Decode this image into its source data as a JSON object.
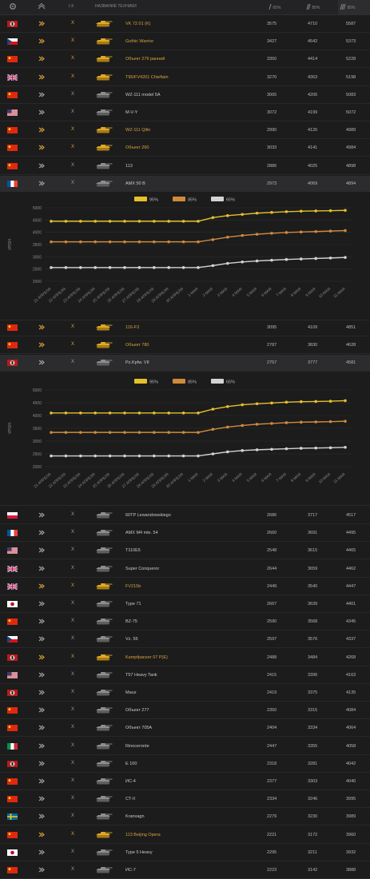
{
  "header": {
    "col_tier": "I-X",
    "col_name": "НАЗВАНИЕ ТЕХНИКИ",
    "col_65": "65%",
    "col_85": "85%",
    "col_95": "95%"
  },
  "colors": {
    "gold": "#e6c02a",
    "orange": "#cf8a3c",
    "white": "#d3d3d3",
    "row_name_gold": "#dba13b"
  },
  "rows": [
    {
      "flag": "germany",
      "rank": "gold",
      "x": "gold",
      "tank": "gold",
      "name": "VK 72.01 (K)",
      "gold": true,
      "v1": "3575",
      "v2": "4710",
      "v3": "5587"
    },
    {
      "flag": "czech",
      "rank": "gold",
      "x": "gold",
      "tank": "gold",
      "name": "Gothic Warrior",
      "gold": true,
      "v1": "3427",
      "v2": "4542",
      "v3": "5373"
    },
    {
      "flag": "china",
      "rank": "gold",
      "x": "gold",
      "tank": "gold",
      "name": "Объект 279 ранний",
      "gold": true,
      "v1": "3350",
      "v2": "4414",
      "v3": "5228"
    },
    {
      "flag": "uk",
      "rank": "gold",
      "x": "gold",
      "tank": "gold",
      "name": "T95/FV4201 Chieftain",
      "gold": true,
      "v1": "3270",
      "v2": "4363",
      "v3": "5198"
    },
    {
      "flag": "china",
      "rank": "silver",
      "x": "grey",
      "tank": "grey",
      "name": "WZ-111 model 5A",
      "gold": false,
      "v1": "3065",
      "v2": "4206",
      "v3": "5083"
    },
    {
      "flag": "usa",
      "rank": "silver",
      "x": "grey",
      "tank": "grey",
      "name": "M-V-Y",
      "gold": false,
      "v1": "3072",
      "v2": "4199",
      "v3": "5072"
    },
    {
      "flag": "china",
      "rank": "gold",
      "x": "gold",
      "tank": "gold",
      "name": "WZ-111 Qilin",
      "gold": true,
      "v1": "2990",
      "v2": "4126",
      "v3": "4989"
    },
    {
      "flag": "china",
      "rank": "gold",
      "x": "gold",
      "tank": "gold",
      "name": "Объект 260",
      "gold": true,
      "v1": "3033",
      "v2": "4141",
      "v3": "4984"
    },
    {
      "flag": "china",
      "rank": "silver",
      "x": "grey",
      "tank": "grey",
      "name": "113",
      "gold": false,
      "v1": "2886",
      "v2": "4025",
      "v3": "4898"
    },
    {
      "flag": "france",
      "rank": "silver",
      "x": "grey",
      "tank": "grey",
      "name": "AMX 50 B",
      "gold": false,
      "v1": "2973",
      "v2": "4069",
      "v3": "4894",
      "selected": true
    }
  ],
  "rows_mid": [
    {
      "flag": "china",
      "rank": "gold",
      "x": "gold",
      "tank": "gold",
      "name": "116-F3",
      "gold": true,
      "v1": "3095",
      "v2": "4109",
      "v3": "4851"
    },
    {
      "flag": "china",
      "rank": "gold",
      "x": "gold",
      "tank": "gold",
      "name": "Объект 780",
      "gold": true,
      "v1": "2787",
      "v2": "3830",
      "v3": "4628"
    },
    {
      "flag": "germany",
      "rank": "silver",
      "x": "grey",
      "tank": "grey",
      "name": "Pz.Kpfw. VII",
      "gold": false,
      "v1": "2757",
      "v2": "3777",
      "v3": "4581",
      "selected": true
    }
  ],
  "rows_bottom": [
    {
      "flag": "poland",
      "rank": "silver",
      "x": "grey",
      "tank": "grey",
      "name": "60TP Lewandowskiego",
      "gold": false,
      "v1": "2686",
      "v2": "3717",
      "v3": "4517"
    },
    {
      "flag": "france",
      "rank": "silver",
      "x": "grey",
      "tank": "grey",
      "name": "AMX M4 mle. 54",
      "gold": false,
      "v1": "2660",
      "v2": "3691",
      "v3": "4495"
    },
    {
      "flag": "usa",
      "rank": "silver",
      "x": "grey",
      "tank": "grey",
      "name": "T110E5",
      "gold": false,
      "v1": "2548",
      "v2": "3615",
      "v3": "4465"
    },
    {
      "flag": "uk",
      "rank": "silver",
      "x": "grey",
      "tank": "grey",
      "name": "Super Conqueror",
      "gold": false,
      "v1": "2644",
      "v2": "3659",
      "v3": "4462"
    },
    {
      "flag": "uk",
      "rank": "gold",
      "x": "gold",
      "tank": "gold",
      "name": "FV215b",
      "gold": true,
      "v1": "2449",
      "v2": "3540",
      "v3": "4447"
    },
    {
      "flag": "japan",
      "rank": "silver",
      "x": "grey",
      "tank": "grey",
      "name": "Type 71",
      "gold": false,
      "v1": "2667",
      "v2": "3639",
      "v3": "4401"
    },
    {
      "flag": "china",
      "rank": "silver",
      "x": "grey",
      "tank": "grey",
      "name": "BZ-75",
      "gold": false,
      "v1": "2590",
      "v2": "3568",
      "v3": "4345"
    },
    {
      "flag": "czech",
      "rank": "silver",
      "x": "grey",
      "tank": "grey",
      "name": "Vz. 55",
      "gold": false,
      "v1": "2597",
      "v2": "3576",
      "v3": "4337"
    },
    {
      "flag": "germany",
      "rank": "gold",
      "x": "gold",
      "tank": "gold",
      "name": "Kampfpanzer 07 P(E)",
      "gold": true,
      "v1": "2488",
      "v2": "3484",
      "v3": "4268"
    },
    {
      "flag": "usa",
      "rank": "silver",
      "x": "grey",
      "tank": "grey",
      "name": "T57 Heavy Tank",
      "gold": false,
      "v1": "2415",
      "v2": "3396",
      "v3": "4163"
    },
    {
      "flag": "germany",
      "rank": "silver",
      "x": "grey",
      "tank": "grey",
      "name": "Maus",
      "gold": false,
      "v1": "2419",
      "v2": "3375",
      "v3": "4135"
    },
    {
      "flag": "china",
      "rank": "silver",
      "x": "grey",
      "tank": "grey",
      "name": "Объект 277",
      "gold": false,
      "v1": "2350",
      "v2": "3315",
      "v3": "4084"
    },
    {
      "flag": "china",
      "rank": "silver",
      "x": "grey",
      "tank": "grey",
      "name": "Объект 705А",
      "gold": false,
      "v1": "2404",
      "v2": "3334",
      "v3": "4064"
    },
    {
      "flag": "italy",
      "rank": "silver",
      "x": "grey",
      "tank": "grey",
      "name": "Rinoceronte",
      "gold": false,
      "v1": "2447",
      "v2": "3355",
      "v3": "4058"
    },
    {
      "flag": "germany",
      "rank": "silver",
      "x": "grey",
      "tank": "grey",
      "name": "E 100",
      "gold": false,
      "v1": "2318",
      "v2": "3281",
      "v3": "4042"
    },
    {
      "flag": "china",
      "rank": "silver",
      "x": "grey",
      "tank": "grey",
      "name": "ИС-4",
      "gold": false,
      "v1": "2377",
      "v2": "3303",
      "v3": "4040"
    },
    {
      "flag": "china",
      "rank": "silver",
      "x": "grey",
      "tank": "grey",
      "name": "СТ-II",
      "gold": false,
      "v1": "2334",
      "v2": "3246",
      "v3": "3995"
    },
    {
      "flag": "sweden",
      "rank": "silver",
      "x": "grey",
      "tank": "grey",
      "name": "Kranvagn",
      "gold": false,
      "v1": "2279",
      "v2": "3230",
      "v3": "3989"
    },
    {
      "flag": "china",
      "rank": "gold",
      "x": "gold",
      "tank": "gold",
      "name": "113 Beijing Opera",
      "gold": true,
      "v1": "2221",
      "v2": "3172",
      "v3": "3960"
    },
    {
      "flag": "japan",
      "rank": "silver",
      "x": "grey",
      "tank": "grey",
      "name": "Type 5 Heavy",
      "gold": false,
      "v1": "2295",
      "v2": "3211",
      "v3": "3932"
    },
    {
      "flag": "china",
      "rank": "silver",
      "x": "grey",
      "tank": "grey",
      "name": "ИС-7",
      "gold": false,
      "v1": "2223",
      "v2": "3142",
      "v3": "3888"
    }
  ],
  "chart_data": [
    {
      "type": "line",
      "x": [
        "21 АПРЕЛЯ",
        "22 АПРЕЛЯ",
        "23 АПРЕЛЯ",
        "24 АПРЕЛЯ",
        "25 АПРЕЛЯ",
        "26 АПРЕЛЯ",
        "27 АПРЕЛЯ",
        "28 АПРЕЛЯ",
        "29 АПРЕЛЯ",
        "30 АПРЕЛЯ",
        "1 МАЯ",
        "2 МАЯ",
        "3 МАЯ",
        "4 МАЯ",
        "5 МАЯ",
        "6 МАЯ",
        "7 МАЯ",
        "8 МАЯ",
        "9 МАЯ",
        "10 МАЯ",
        "11 МАЯ"
      ],
      "ylabel": "УРОН",
      "yticks": [
        2000,
        2500,
        3000,
        3500,
        4000,
        4500,
        5000
      ],
      "ylim": [
        2000,
        5000
      ],
      "series": [
        {
          "name": "95%",
          "color": "#e6c02a",
          "values": [
            4450,
            4450,
            4450,
            4450,
            4450,
            4450,
            4450,
            4450,
            4450,
            4450,
            4450,
            4600,
            4680,
            4730,
            4780,
            4810,
            4840,
            4860,
            4870,
            4880,
            4894
          ]
        },
        {
          "name": "85%",
          "color": "#cf8a3c",
          "values": [
            3610,
            3610,
            3610,
            3610,
            3610,
            3610,
            3610,
            3610,
            3610,
            3610,
            3610,
            3700,
            3800,
            3870,
            3920,
            3960,
            3990,
            4010,
            4030,
            4050,
            4069
          ]
        },
        {
          "name": "65%",
          "color": "#d3d3d3",
          "values": [
            2560,
            2560,
            2560,
            2560,
            2560,
            2560,
            2560,
            2560,
            2560,
            2560,
            2560,
            2640,
            2730,
            2790,
            2830,
            2860,
            2890,
            2910,
            2930,
            2950,
            2973
          ]
        }
      ],
      "legend": "top-center"
    },
    {
      "type": "line",
      "x": [
        "21 АПРЕЛЯ",
        "22 АПРЕЛЯ",
        "23 АПРЕЛЯ",
        "24 АПРЕЛЯ",
        "25 АПРЕЛЯ",
        "26 АПРЕЛЯ",
        "27 АПРЕЛЯ",
        "28 АПРЕЛЯ",
        "29 АПРЕЛЯ",
        "30 АПРЕЛЯ",
        "1 МАЯ",
        "2 МАЯ",
        "3 МАЯ",
        "4 МАЯ",
        "5 МАЯ",
        "6 МАЯ",
        "7 МАЯ",
        "8 МАЯ",
        "9 МАЯ",
        "10 МАЯ",
        "11 МАЯ"
      ],
      "ylabel": "УРОН",
      "yticks": [
        2000,
        2500,
        3000,
        3500,
        4000,
        4500,
        5000
      ],
      "ylim": [
        2000,
        5000
      ],
      "series": [
        {
          "name": "95%",
          "color": "#e6c02a",
          "values": [
            4100,
            4100,
            4100,
            4100,
            4100,
            4100,
            4100,
            4100,
            4100,
            4100,
            4100,
            4250,
            4350,
            4420,
            4460,
            4490,
            4520,
            4540,
            4550,
            4560,
            4581
          ]
        },
        {
          "name": "85%",
          "color": "#cf8a3c",
          "values": [
            3340,
            3340,
            3340,
            3340,
            3340,
            3340,
            3340,
            3340,
            3340,
            3340,
            3340,
            3460,
            3550,
            3610,
            3660,
            3690,
            3720,
            3740,
            3750,
            3760,
            3777
          ]
        },
        {
          "name": "65%",
          "color": "#d3d3d3",
          "values": [
            2420,
            2420,
            2420,
            2420,
            2420,
            2420,
            2420,
            2420,
            2420,
            2420,
            2420,
            2500,
            2580,
            2630,
            2660,
            2680,
            2700,
            2720,
            2730,
            2740,
            2757
          ]
        }
      ],
      "legend": "top-center"
    }
  ]
}
